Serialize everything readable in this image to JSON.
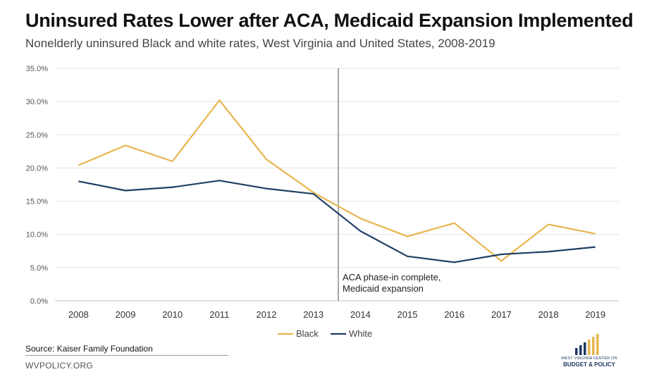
{
  "chart_data": {
    "type": "line",
    "title": "Uninsured Rates Lower after ACA, Medicaid Expansion Implemented",
    "subtitle": "Nonelderly uninsured Black and white rates, West Virginia and United States, 2008-2019",
    "categories": [
      "2008",
      "2009",
      "2010",
      "2011",
      "2012",
      "2013",
      "2014",
      "2015",
      "2016",
      "2017",
      "2018",
      "2019"
    ],
    "y_ticks": [
      "0.0%",
      "5.0%",
      "10.0%",
      "15.0%",
      "20.0%",
      "25.0%",
      "30.0%",
      "35.0%"
    ],
    "ylim": [
      0,
      35
    ],
    "grid": true,
    "legend_position": "bottom",
    "series": [
      {
        "name": "Black",
        "color": "#e8b54d",
        "values": [
          20.4,
          23.4,
          21.0,
          30.2,
          21.3,
          16.3,
          12.4,
          9.7,
          11.7,
          6.0,
          11.5,
          10.1
        ]
      },
      {
        "name": "White",
        "color": "#1f3f66",
        "values": [
          18.0,
          16.6,
          17.1,
          18.1,
          16.9,
          16.1,
          10.5,
          6.7,
          5.8,
          7.0,
          7.4,
          8.1
        ]
      }
    ],
    "annotation": {
      "x": "2014",
      "lines": [
        "ACA phase-in complete,",
        "Medicaid expansion"
      ]
    }
  },
  "footer": {
    "source": "Source: Kaiser Family Foundation",
    "website": "WVPOLICY.ORG",
    "logo_line1": "WEST VIRGINIA CENTER ON",
    "logo_line2": "BUDGET & POLICY"
  }
}
